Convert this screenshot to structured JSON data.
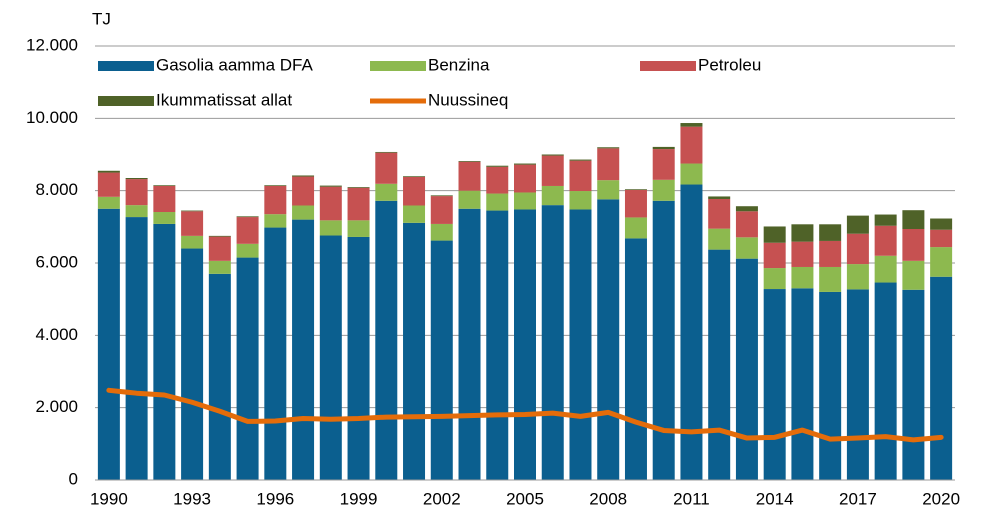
{
  "chart_data": {
    "type": "bar",
    "y_label": "TJ",
    "categories": [
      "1990",
      null,
      null,
      "1993",
      null,
      null,
      "1996",
      null,
      null,
      "1999",
      null,
      null,
      "2002",
      null,
      null,
      "2005",
      null,
      null,
      "2008",
      null,
      null,
      "2011",
      null,
      null,
      "2014",
      null,
      null,
      "2017",
      null,
      null,
      "2020"
    ],
    "series": [
      {
        "name": "Gasolia aamma DFA",
        "color": "#0b5f8f",
        "values": [
          7500,
          7270,
          7080,
          6400,
          5700,
          6150,
          6980,
          7200,
          6760,
          6720,
          7720,
          7110,
          6620,
          7500,
          7450,
          7480,
          7600,
          7480,
          7760,
          6680,
          7720,
          8170,
          6370,
          6120,
          5280,
          5300,
          5200,
          5270,
          5460,
          5260,
          5620
        ]
      },
      {
        "name": "Benzina",
        "color": "#8db94f",
        "values": [
          330,
          330,
          330,
          350,
          360,
          380,
          370,
          390,
          420,
          460,
          470,
          480,
          460,
          500,
          470,
          470,
          530,
          510,
          530,
          580,
          580,
          580,
          580,
          590,
          580,
          590,
          690,
          700,
          740,
          800,
          820
        ]
      },
      {
        "name": "Petroleu",
        "color": "#c65151",
        "values": [
          670,
          720,
          720,
          680,
          670,
          740,
          780,
          800,
          930,
          900,
          860,
          790,
          770,
          800,
          740,
          770,
          840,
          840,
          880,
          760,
          850,
          1020,
          820,
          720,
          700,
          700,
          720,
          840,
          830,
          880,
          480
        ]
      },
      {
        "name": "Ikummatissat allat",
        "color": "#4f6228",
        "values": [
          50,
          30,
          20,
          20,
          20,
          20,
          20,
          30,
          30,
          20,
          20,
          20,
          20,
          20,
          30,
          30,
          30,
          30,
          30,
          20,
          60,
          100,
          70,
          140,
          450,
          480,
          460,
          500,
          310,
          520,
          310
        ]
      },
      {
        "name": "Nuussineq",
        "color": "#e46c0a",
        "type": "line",
        "values": [
          2480,
          2400,
          2350,
          2150,
          1900,
          1620,
          1630,
          1700,
          1680,
          1700,
          1740,
          1750,
          1760,
          1780,
          1800,
          1810,
          1850,
          1760,
          1870,
          1600,
          1370,
          1330,
          1380,
          1160,
          1180,
          1380,
          1130,
          1160,
          1200,
          1110,
          1180
        ]
      }
    ],
    "ylim": [
      0,
      12000
    ],
    "yticks": [
      0,
      {
        "value": 2000,
        "label": "2.000"
      },
      {
        "value": 4000,
        "label": "4.000"
      },
      {
        "value": 6000,
        "label": "6.000"
      },
      {
        "value": 8000,
        "label": "8.000"
      },
      {
        "value": 10000,
        "label": "10.000"
      },
      {
        "value": 12000,
        "label": "12.000"
      }
    ],
    "grid": true,
    "stacked": true
  }
}
